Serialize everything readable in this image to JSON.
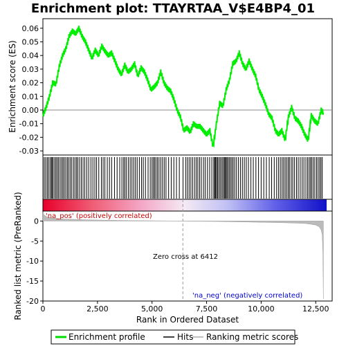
{
  "chart_data": {
    "type": "line",
    "title": "Enrichment plot: TTAYRTAA_V$E4BP4_01",
    "xlabel": "Rank in Ordered Dataset",
    "ylabel_top": "Enrichment score (ES)",
    "ylabel_bottom": "Ranked list metric (PreRanked)",
    "xlim": [
      0,
      13000
    ],
    "es_ylim": [
      -0.033,
      0.067
    ],
    "metric_ylim": [
      -20,
      2.5
    ],
    "x_ticks": [
      0,
      2500,
      5000,
      7500,
      10000,
      12500
    ],
    "x_tick_labels": [
      "0",
      "2,500",
      "5,000",
      "7,500",
      "10,000",
      "12,500"
    ],
    "es_ticks": [
      -0.03,
      -0.02,
      -0.01,
      0.0,
      0.01,
      0.02,
      0.03,
      0.04,
      0.05,
      0.06
    ],
    "es_tick_labels": [
      "-0.03",
      "-0.02",
      "-0.01",
      "0.00",
      "0.01",
      "0.02",
      "0.03",
      "0.04",
      "0.05",
      "0.06"
    ],
    "metric_ticks": [
      0,
      -5,
      -10,
      -15,
      -20
    ],
    "metric_tick_labels": [
      "0",
      "-5",
      "-10",
      "-15",
      "-20"
    ],
    "es_curve": {
      "x": [
        0,
        150,
        300,
        450,
        600,
        750,
        900,
        1050,
        1200,
        1350,
        1500,
        1650,
        1800,
        1950,
        2100,
        2250,
        2400,
        2550,
        2700,
        2850,
        3000,
        3150,
        3300,
        3450,
        3600,
        3750,
        3900,
        4050,
        4200,
        4350,
        4500,
        4650,
        4800,
        4950,
        5100,
        5250,
        5400,
        5550,
        5700,
        5850,
        6000,
        6150,
        6300,
        6450,
        6600,
        6750,
        6900,
        7050,
        7200,
        7350,
        7500,
        7650,
        7800,
        7950,
        8100,
        8250,
        8400,
        8550,
        8700,
        8850,
        9000,
        9150,
        9300,
        9450,
        9600,
        9750,
        9900,
        10050,
        10200,
        10350,
        10500,
        10650,
        10800,
        10950,
        11100,
        11250,
        11400,
        11550,
        11700,
        11850,
        12000,
        12150,
        12300,
        12450,
        12600,
        12750,
        12850
      ],
      "y": [
        -0.004,
        0.002,
        0.01,
        0.02,
        0.019,
        0.032,
        0.04,
        0.045,
        0.054,
        0.058,
        0.056,
        0.06,
        0.054,
        0.05,
        0.044,
        0.038,
        0.044,
        0.04,
        0.047,
        0.043,
        0.04,
        0.042,
        0.036,
        0.03,
        0.026,
        0.033,
        0.028,
        0.03,
        0.034,
        0.025,
        0.031,
        0.028,
        0.022,
        0.015,
        0.017,
        0.02,
        0.028,
        0.02,
        0.016,
        0.014,
        0.008,
        0.0,
        -0.005,
        -0.015,
        -0.013,
        -0.016,
        -0.01,
        -0.012,
        -0.012,
        -0.015,
        -0.018,
        -0.015,
        -0.027,
        -0.01,
        0.005,
        0.003,
        0.015,
        0.022,
        0.034,
        0.036,
        0.042,
        0.034,
        0.03,
        0.036,
        0.03,
        0.025,
        0.015,
        0.01,
        0.004,
        -0.003,
        -0.006,
        -0.015,
        -0.018,
        -0.015,
        -0.022,
        -0.005,
        0.002,
        -0.006,
        -0.008,
        -0.012,
        -0.018,
        -0.022,
        -0.004,
        -0.008,
        -0.01,
        0.0,
        -0.002
      ]
    },
    "hit_ranks": [
      60,
      130,
      200,
      260,
      330,
      390,
      420,
      470,
      540,
      600,
      660,
      720,
      790,
      860,
      920,
      980,
      1050,
      1120,
      1180,
      1250,
      1320,
      1400,
      1470,
      1540,
      1600,
      1680,
      1760,
      1840,
      1920,
      2010,
      2100,
      2200,
      2290,
      2380,
      2460,
      2560,
      2680,
      2760,
      2840,
      2950,
      3050,
      3150,
      3280,
      3400,
      3520,
      3620,
      3700,
      3760,
      3830,
      3920,
      4000,
      4080,
      4160,
      4240,
      4320,
      4420,
      4520,
      4600,
      4700,
      4820,
      4920,
      5000,
      5060,
      5120,
      5180,
      5250,
      5320,
      5400,
      5480,
      5560,
      5640,
      5760,
      5880,
      6000,
      6120,
      6250,
      6420,
      6540,
      6620,
      6700,
      6780,
      6860,
      6950,
      7030,
      7100,
      7180,
      7260,
      7360,
      7440,
      7540,
      7640,
      7740,
      7830,
      7870,
      7910,
      7960,
      8000,
      8060,
      8120,
      8180,
      8240,
      8300,
      8340,
      8380,
      8430,
      8480,
      8540,
      8600,
      8660,
      8720,
      8790,
      8870,
      8960,
      9050,
      9140,
      9230,
      9320,
      9420,
      9530,
      9640,
      9760,
      9880,
      10000,
      10120,
      10240,
      10370,
      10480,
      10600,
      10710,
      10800,
      10880,
      10960,
      11030,
      11100,
      11170,
      11240,
      11300,
      11380,
      11450,
      11530,
      11620,
      11700,
      11790,
      11880,
      11960,
      12050,
      12130,
      12200,
      12260,
      12320,
      12390,
      12460,
      12540,
      12610,
      12680,
      12740,
      12800
    ],
    "metric_curve": {
      "x": [
        0,
        50,
        200,
        500,
        1000,
        1500,
        2000,
        3000,
        4000,
        5000,
        6000,
        6412,
        7000,
        8000,
        9000,
        10000,
        11000,
        11500,
        12000,
        12300,
        12500,
        12650,
        12750,
        12800,
        12830,
        12850
      ],
      "y": [
        2.2,
        1.5,
        1.0,
        0.7,
        0.5,
        0.4,
        0.3,
        0.2,
        0.12,
        0.07,
        0.02,
        0.0,
        -0.05,
        -0.1,
        -0.2,
        -0.3,
        -0.4,
        -0.5,
        -0.6,
        -0.8,
        -1.0,
        -1.4,
        -2.2,
        -3.5,
        -8.0,
        -19.5
      ]
    },
    "zero_cross": 6412,
    "zero_cross_label": "Zero cross at 6412",
    "pos_label": "'na_pos' (positively correlated)",
    "neg_label": "'na_neg' (negatively correlated)",
    "legend": [
      {
        "label": "Enrichment profile",
        "color": "#00dd00"
      },
      {
        "label": "Hits",
        "color": "#000000"
      },
      {
        "label": "Ranking metric scores",
        "color": "#aaaaaa"
      }
    ],
    "colors": {
      "es_line": "#00ee00",
      "pos_text": "#cc0000",
      "neg_text": "#0000cc",
      "metric_fill": "#bbbbbb"
    }
  }
}
